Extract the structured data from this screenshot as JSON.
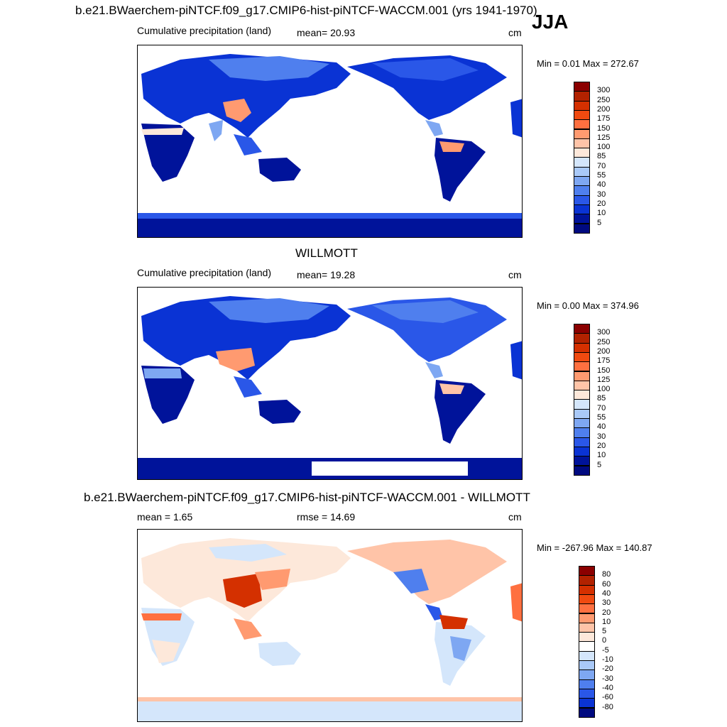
{
  "header": {
    "case_title": "b.e21.BWaerchem-piNTCF.f09_g17.CMIP6-hist-piNTCF-WACCM.001 (yrs 1941-1970)",
    "season": "JJA"
  },
  "panels": [
    {
      "id": "model",
      "title": "",
      "left_label": "Cumulative precipitation (land)",
      "center_label": "mean=  20.93",
      "units": "cm",
      "minmax": "Min =   0.01 Max = 272.67",
      "colorbar": {
        "ticks": [
          "300",
          "250",
          "200",
          "175",
          "150",
          "125",
          "100",
          "85",
          "70",
          "55",
          "40",
          "30",
          "20",
          "10",
          "5"
        ],
        "colors": [
          "#8b0000",
          "#b22200",
          "#d43000",
          "#f04a10",
          "#ff7040",
          "#ff9a70",
          "#ffc4a8",
          "#fde8da",
          "#d4e6fb",
          "#a9c9f8",
          "#7ea7f2",
          "#4f7fee",
          "#2a57e8",
          "#0a33d4",
          "#00139a",
          "#000a80"
        ]
      }
    },
    {
      "id": "obs",
      "title": "WILLMOTT",
      "left_label": "Cumulative precipitation (land)",
      "center_label": "mean=  19.28",
      "units": "cm",
      "minmax": "Min =   0.00 Max = 374.96",
      "colorbar": {
        "ticks": [
          "300",
          "250",
          "200",
          "175",
          "150",
          "125",
          "100",
          "85",
          "70",
          "55",
          "40",
          "30",
          "20",
          "10",
          "5"
        ],
        "colors": [
          "#8b0000",
          "#b22200",
          "#d43000",
          "#f04a10",
          "#ff7040",
          "#ff9a70",
          "#ffc4a8",
          "#fde8da",
          "#d4e6fb",
          "#a9c9f8",
          "#7ea7f2",
          "#4f7fee",
          "#2a57e8",
          "#0a33d4",
          "#00139a",
          "#000a80"
        ]
      }
    },
    {
      "id": "diff",
      "title": "b.e21.BWaerchem-piNTCF.f09_g17.CMIP6-hist-piNTCF-WACCM.001 - WILLMOTT",
      "left_label": "mean =   1.65",
      "center_label": "rmse =  14.69",
      "units": "cm",
      "minmax": "Min = -267.96 Max = 140.87",
      "colorbar": {
        "ticks": [
          "80",
          "60",
          "40",
          "30",
          "20",
          "10",
          "5",
          "0",
          "-5",
          "-10",
          "-20",
          "-30",
          "-40",
          "-60",
          "-80"
        ],
        "colors": [
          "#8b0000",
          "#b22200",
          "#d43000",
          "#f04a10",
          "#ff7040",
          "#ff9a70",
          "#ffc4a8",
          "#fde8da",
          "#ffffff",
          "#d4e6fb",
          "#a9c9f8",
          "#7ea7f2",
          "#4f7fee",
          "#2a57e8",
          "#0a33d4",
          "#000a80"
        ]
      }
    }
  ],
  "chart_data": [
    {
      "type": "heatmap",
      "title": "b.e21.BWaerchem-piNTCF.f09_g17.CMIP6-hist-piNTCF-WACCM.001 (yrs 1941-1970)",
      "subtitle": "Cumulative precipitation (land)",
      "season": "JJA",
      "units": "cm",
      "mean": 20.93,
      "min": 0.01,
      "max": 272.67,
      "levels": [
        5,
        10,
        20,
        30,
        40,
        55,
        70,
        85,
        100,
        125,
        150,
        175,
        200,
        250,
        300
      ]
    },
    {
      "type": "heatmap",
      "title": "WILLMOTT",
      "subtitle": "Cumulative precipitation (land)",
      "units": "cm",
      "mean": 19.28,
      "min": 0.0,
      "max": 374.96,
      "levels": [
        5,
        10,
        20,
        30,
        40,
        55,
        70,
        85,
        100,
        125,
        150,
        175,
        200,
        250,
        300
      ]
    },
    {
      "type": "heatmap",
      "title": "b.e21.BWaerchem-piNTCF.f09_g17.CMIP6-hist-piNTCF-WACCM.001 - WILLMOTT",
      "units": "cm",
      "mean": 1.65,
      "rmse": 14.69,
      "min": -267.96,
      "max": 140.87,
      "levels": [
        -80,
        -60,
        -40,
        -30,
        -20,
        -10,
        -5,
        0,
        5,
        10,
        20,
        30,
        40,
        60,
        80
      ]
    }
  ]
}
